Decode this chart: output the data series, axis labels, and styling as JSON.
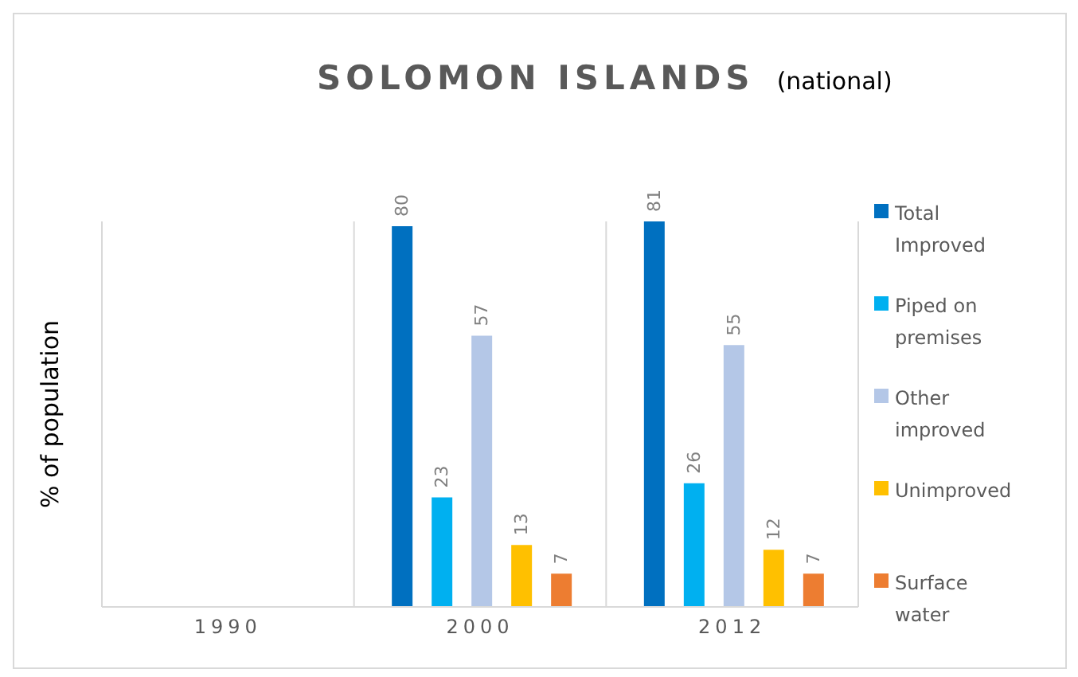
{
  "chart_data": {
    "type": "bar",
    "title": "SOLOMON ISLANDS",
    "subtitle": "(national)",
    "ylabel": "% of population",
    "categories": [
      "1990",
      "2000",
      "2012"
    ],
    "series": [
      {
        "name": "Total Improved",
        "color": "#0070c0",
        "values": [
          null,
          80,
          81
        ]
      },
      {
        "name": "Piped on premises",
        "color": "#00b0f0",
        "values": [
          null,
          23,
          26
        ]
      },
      {
        "name": "Other improved",
        "color": "#b4c7e7",
        "values": [
          null,
          57,
          55
        ]
      },
      {
        "name": "Unimproved",
        "color": "#ffc000",
        "values": [
          null,
          13,
          12
        ]
      },
      {
        "name": "Surface water",
        "color": "#ed7d31",
        "values": [
          null,
          7,
          7
        ]
      }
    ],
    "data_labels": true,
    "grid": "x",
    "legend": "right"
  }
}
